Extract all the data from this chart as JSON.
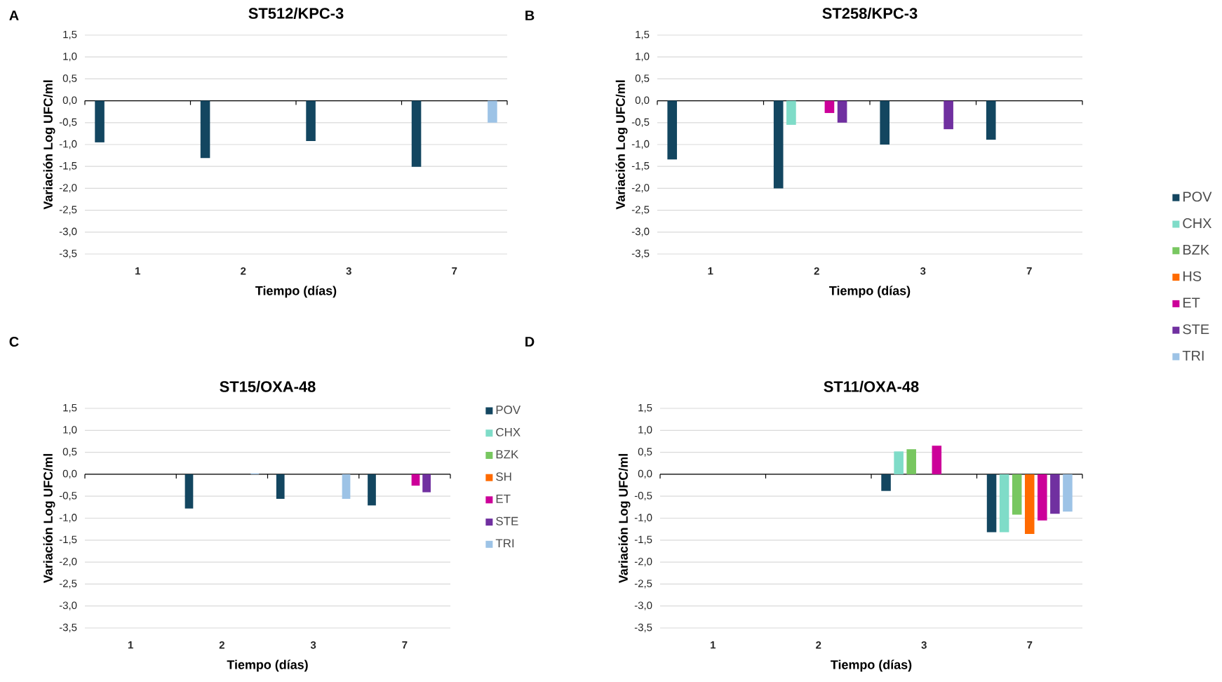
{
  "chart_data": [
    {
      "type": "bar",
      "title": "ST512/KPC-3",
      "annotations": [
        "A"
      ],
      "xlabel": "Tiempo (días)",
      "ylabel": "Variación Log UFC/ml",
      "categories": [
        "1",
        "2",
        "3",
        "7"
      ],
      "ylim": [
        -3.5,
        1.5
      ],
      "yticks": [
        {
          "value": -3.5,
          "label": "-3,5"
        },
        {
          "value": -3,
          "label": "-3,0"
        },
        {
          "value": -2.5,
          "label": "-2,5"
        },
        {
          "value": -2,
          "label": "-2,0"
        },
        {
          "value": -1.5,
          "label": "-1,5"
        },
        {
          "value": -1,
          "label": "-1,0"
        },
        {
          "value": -0.5,
          "label": "-0,5"
        },
        {
          "value": 0,
          "label": "0,0"
        },
        {
          "value": 0.5,
          "label": "0,5"
        },
        {
          "value": 1,
          "label": "1,0"
        },
        {
          "value": 1.5,
          "label": "1,5"
        }
      ],
      "grid": "y",
      "series": [
        {
          "color": "#134660",
          "values": [
            -0.95,
            -1.31,
            -0.92,
            -1.51
          ]
        },
        {
          "values": [
            null,
            null,
            null,
            null
          ]
        },
        {
          "values": [
            null,
            null,
            null,
            null
          ]
        },
        {
          "values": [
            null,
            null,
            null,
            null
          ]
        },
        {
          "values": [
            null,
            null,
            null,
            null
          ]
        },
        {
          "values": [
            null,
            null,
            null,
            null
          ]
        },
        {
          "color": "#9dc3e6",
          "values": [
            null,
            null,
            null,
            -0.5
          ]
        }
      ]
    },
    {
      "type": "bar",
      "title": "ST258/KPC-3",
      "annotations": [
        "B"
      ],
      "xlabel": "Tiempo (días)",
      "ylabel": "Variación Log UFC/ml",
      "categories": [
        "1",
        "2",
        "3",
        "7"
      ],
      "ylim": [
        -3.5,
        1.5
      ],
      "yticks": [
        {
          "value": -3.5,
          "label": "-3,5"
        },
        {
          "value": -3,
          "label": "-3,0"
        },
        {
          "value": -2.5,
          "label": "-2,5"
        },
        {
          "value": -2,
          "label": "-2,0"
        },
        {
          "value": -1.5,
          "label": "-1,5"
        },
        {
          "value": -1,
          "label": "-1,0"
        },
        {
          "value": -0.5,
          "label": "-0,5"
        },
        {
          "value": 0,
          "label": "0,0"
        },
        {
          "value": 0.5,
          "label": "0,5"
        },
        {
          "value": 1,
          "label": "1,0"
        },
        {
          "value": 1.5,
          "label": "1,5"
        }
      ],
      "grid": "y",
      "legend": "right",
      "series": [
        {
          "name": "POV",
          "color": "#134660",
          "values": [
            -1.34,
            -2.0,
            -1.0,
            -0.89
          ]
        },
        {
          "name": "CHX",
          "color": "#7fdcc8",
          "values": [
            null,
            -0.55,
            null,
            null
          ]
        },
        {
          "name": "BZK",
          "color": "#78c760",
          "values": [
            null,
            null,
            null,
            null
          ]
        },
        {
          "name": "HS",
          "color": "#ff6a00",
          "values": [
            null,
            null,
            null,
            null
          ]
        },
        {
          "name": "ET",
          "color": "#cc0099",
          "values": [
            null,
            -0.28,
            null,
            null
          ]
        },
        {
          "name": "STE",
          "color": "#7030a0",
          "values": [
            null,
            -0.5,
            -0.65,
            null
          ]
        },
        {
          "name": "TRI",
          "color": "#9dc3e6",
          "values": [
            null,
            null,
            null,
            null
          ]
        }
      ]
    },
    {
      "type": "bar",
      "title": "ST15/OXA-48",
      "annotations": [
        "C"
      ],
      "xlabel": "Tiempo (días)",
      "ylabel": "Variación Log UFC/ml",
      "categories": [
        "1",
        "2",
        "3",
        "7"
      ],
      "ylim": [
        -3.5,
        1.5
      ],
      "yticks": [
        {
          "value": -3.5,
          "label": "-3,5"
        },
        {
          "value": -3,
          "label": "-3,0"
        },
        {
          "value": -2.5,
          "label": "-2,5"
        },
        {
          "value": -2,
          "label": "-2,0"
        },
        {
          "value": -1.5,
          "label": "-1,5"
        },
        {
          "value": -1,
          "label": "-1,0"
        },
        {
          "value": -0.5,
          "label": "-0,5"
        },
        {
          "value": 0,
          "label": "0,0"
        },
        {
          "value": 0.5,
          "label": "0,5"
        },
        {
          "value": 1,
          "label": "1,0"
        },
        {
          "value": 1.5,
          "label": "1,5"
        }
      ],
      "grid": "y",
      "legend": "right",
      "series": [
        {
          "name": "POV",
          "color": "#134660",
          "values": [
            null,
            -0.78,
            -0.56,
            -0.71
          ]
        },
        {
          "name": "CHX",
          "color": "#7fdcc8",
          "values": [
            null,
            null,
            null,
            null
          ]
        },
        {
          "name": "BZK",
          "color": "#78c760",
          "values": [
            null,
            null,
            null,
            null
          ]
        },
        {
          "name": "SH",
          "color": "#ff6a00",
          "values": [
            null,
            null,
            null,
            null
          ]
        },
        {
          "name": "ET",
          "color": "#cc0099",
          "values": [
            null,
            null,
            null,
            -0.26
          ]
        },
        {
          "name": "STE",
          "color": "#7030a0",
          "values": [
            null,
            null,
            null,
            -0.41
          ]
        },
        {
          "name": "TRI",
          "color": "#9dc3e6",
          "values": [
            null,
            0.02,
            -0.56,
            null
          ]
        }
      ]
    },
    {
      "type": "bar",
      "title": "ST11/OXA-48",
      "annotations": [
        "D"
      ],
      "xlabel": "Tiempo (días)",
      "ylabel": "Variación Log UFC/ml",
      "categories": [
        "1",
        "2",
        "3",
        "7"
      ],
      "ylim": [
        -3.5,
        1.5
      ],
      "yticks": [
        {
          "value": -3.5,
          "label": "-3,5"
        },
        {
          "value": -3,
          "label": "-3,0"
        },
        {
          "value": -2.5,
          "label": "-2,5"
        },
        {
          "value": -2,
          "label": "-2,0"
        },
        {
          "value": -1.5,
          "label": "-1,5"
        },
        {
          "value": -1,
          "label": "-1,0"
        },
        {
          "value": -0.5,
          "label": "-0,5"
        },
        {
          "value": 0,
          "label": "0,0"
        },
        {
          "value": 0.5,
          "label": "0,5"
        },
        {
          "value": 1,
          "label": "1,0"
        },
        {
          "value": 1.5,
          "label": "1,5"
        }
      ],
      "grid": "y",
      "series": [
        {
          "color": "#134660",
          "values": [
            null,
            null,
            -0.38,
            -1.32
          ]
        },
        {
          "color": "#7fdcc8",
          "values": [
            null,
            null,
            0.52,
            -1.32
          ]
        },
        {
          "color": "#78c760",
          "values": [
            null,
            null,
            0.57,
            -0.92
          ]
        },
        {
          "color": "#ff6a00",
          "values": [
            null,
            null,
            null,
            -1.36
          ]
        },
        {
          "color": "#cc0099",
          "values": [
            null,
            null,
            0.65,
            -1.05
          ]
        },
        {
          "color": "#7030a0",
          "values": [
            null,
            null,
            null,
            -0.9
          ]
        },
        {
          "color": "#9dc3e6",
          "values": [
            null,
            null,
            null,
            -0.85
          ]
        }
      ]
    }
  ]
}
